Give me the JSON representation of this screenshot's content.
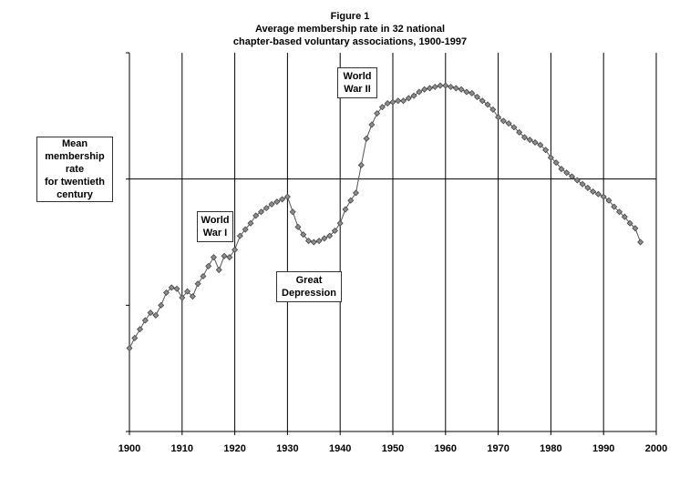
{
  "figure_label": "Figure 1",
  "title_line1": "Average membership rate in 32 national",
  "title_line2": "chapter-based voluntary associations, 1900-1997",
  "annotations": {
    "mean_label": [
      "Mean",
      "membership",
      "rate",
      "for twentieth",
      "century"
    ],
    "ww1": [
      "World",
      "War I"
    ],
    "ww2": [
      "World",
      "War II"
    ],
    "depression": [
      "Great",
      "Depression"
    ]
  },
  "chart_data": {
    "type": "line",
    "title": "Average membership rate in 32 national chapter-based voluntary associations, 1900-1997",
    "xlabel": "",
    "ylabel": "",
    "xlim": [
      1900,
      2000
    ],
    "ylim": [
      0,
      3
    ],
    "x_ticks": [
      "1900",
      "1910",
      "1920",
      "1930",
      "1940",
      "1950",
      "1960",
      "1970",
      "1980",
      "1990",
      "2000"
    ],
    "grid": "vertical lines at each decade",
    "reference_line": {
      "label": "Mean membership rate for twentieth century",
      "y": 2
    },
    "marker": "diamond",
    "line_color": "#555555",
    "marker_color": "#8c8c8c",
    "x": [
      1900,
      1901,
      1902,
      1903,
      1904,
      1905,
      1906,
      1907,
      1908,
      1909,
      1910,
      1911,
      1912,
      1913,
      1914,
      1915,
      1916,
      1917,
      1918,
      1919,
      1920,
      1921,
      1922,
      1923,
      1924,
      1925,
      1926,
      1927,
      1928,
      1929,
      1930,
      1931,
      1932,
      1933,
      1934,
      1935,
      1936,
      1937,
      1938,
      1939,
      1940,
      1941,
      1942,
      1943,
      1944,
      1945,
      1946,
      1947,
      1948,
      1949,
      1950,
      1951,
      1952,
      1953,
      1954,
      1955,
      1956,
      1957,
      1958,
      1959,
      1960,
      1961,
      1962,
      1963,
      1964,
      1965,
      1966,
      1967,
      1968,
      1969,
      1970,
      1971,
      1972,
      1973,
      1974,
      1975,
      1976,
      1977,
      1978,
      1979,
      1980,
      1981,
      1982,
      1983,
      1984,
      1985,
      1986,
      1987,
      1988,
      1989,
      1990,
      1991,
      1992,
      1993,
      1994,
      1995,
      1996,
      1997
    ],
    "y": [
      0.66,
      0.74,
      0.81,
      0.88,
      0.94,
      0.92,
      1.0,
      1.1,
      1.14,
      1.13,
      1.06,
      1.11,
      1.07,
      1.17,
      1.23,
      1.31,
      1.38,
      1.28,
      1.39,
      1.38,
      1.44,
      1.55,
      1.6,
      1.65,
      1.71,
      1.74,
      1.77,
      1.8,
      1.82,
      1.84,
      1.86,
      1.74,
      1.62,
      1.56,
      1.51,
      1.5,
      1.51,
      1.53,
      1.55,
      1.59,
      1.65,
      1.76,
      1.83,
      1.89,
      2.11,
      2.32,
      2.43,
      2.52,
      2.57,
      2.6,
      2.61,
      2.62,
      2.62,
      2.64,
      2.66,
      2.69,
      2.71,
      2.72,
      2.73,
      2.74,
      2.74,
      2.73,
      2.72,
      2.71,
      2.69,
      2.68,
      2.65,
      2.62,
      2.59,
      2.55,
      2.49,
      2.46,
      2.44,
      2.41,
      2.37,
      2.33,
      2.31,
      2.29,
      2.27,
      2.23,
      2.17,
      2.13,
      2.08,
      2.05,
      2.02,
      1.99,
      1.96,
      1.93,
      1.9,
      1.88,
      1.86,
      1.83,
      1.78,
      1.74,
      1.7,
      1.65,
      1.61,
      1.5
    ]
  }
}
